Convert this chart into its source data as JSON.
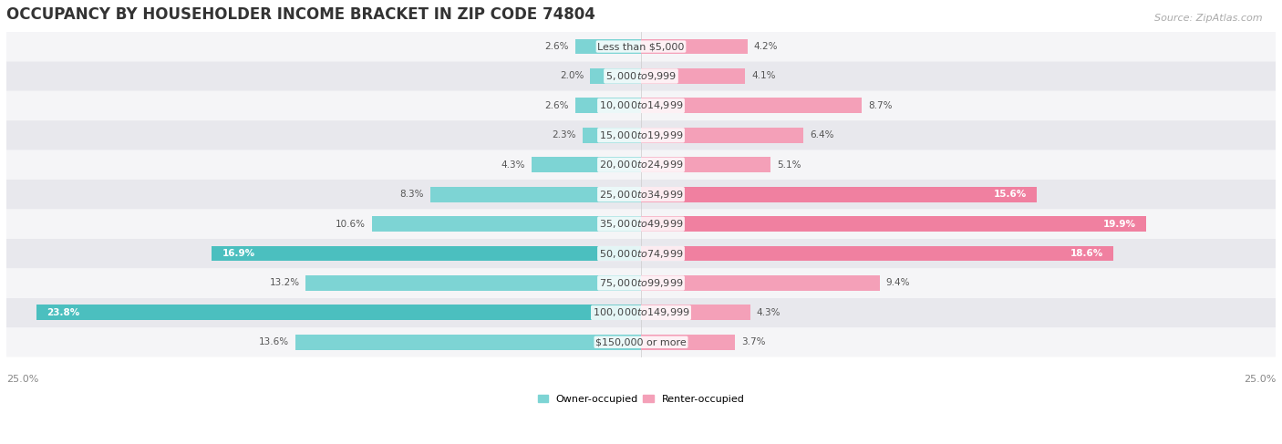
{
  "title": "OCCUPANCY BY HOUSEHOLDER INCOME BRACKET IN ZIP CODE 74804",
  "source": "Source: ZipAtlas.com",
  "categories": [
    "Less than $5,000",
    "$5,000 to $9,999",
    "$10,000 to $14,999",
    "$15,000 to $19,999",
    "$20,000 to $24,999",
    "$25,000 to $34,999",
    "$35,000 to $49,999",
    "$50,000 to $74,999",
    "$75,000 to $99,999",
    "$100,000 to $149,999",
    "$150,000 or more"
  ],
  "owner_values": [
    2.6,
    2.0,
    2.6,
    2.3,
    4.3,
    8.3,
    10.6,
    16.9,
    13.2,
    23.8,
    13.6
  ],
  "renter_values": [
    4.2,
    4.1,
    8.7,
    6.4,
    5.1,
    15.6,
    19.9,
    18.6,
    9.4,
    4.3,
    3.7
  ],
  "owner_color": "#4BBFBF",
  "renter_color": "#F080A0",
  "owner_color_light": "#7DD4D4",
  "renter_color_light": "#F4A0B8",
  "owner_label": "Owner-occupied",
  "renter_label": "Renter-occupied",
  "xlim": 25.0,
  "bar_height": 0.52,
  "row_colors": [
    "#f5f5f7",
    "#e8e8ed"
  ],
  "title_fontsize": 12,
  "label_fontsize": 8,
  "tick_fontsize": 8,
  "source_fontsize": 8,
  "value_fontsize": 7.5
}
